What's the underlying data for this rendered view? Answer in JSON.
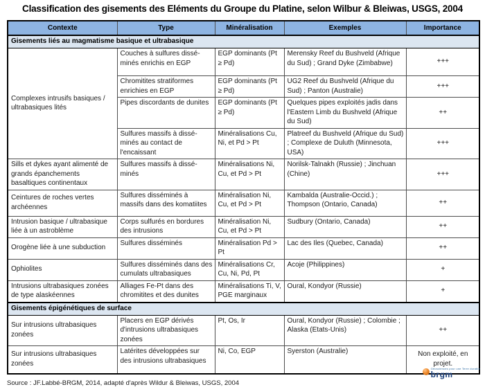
{
  "title": "Classification des gisements des Eléments du Groupe du Platine, selon Wilbur & Bleiwas, USGS, 2004",
  "table": {
    "headers": [
      "Contexte",
      "Type",
      "Minéralisation",
      "Exemples",
      "Importance"
    ],
    "sections": [
      {
        "label": "Gisements liés au magmatisme basique et ultrabasique",
        "rows": [
          {
            "contexte": "Complexes intrusifs basiques / ultrabasiques lités",
            "type": "Couches à sulfures dissé-minés enrichis en EGP",
            "mineralisation": "EGP dominants (Pt ≥ Pd)",
            "exemples": "Merensky Reef du Bushveld (Afrique du Sud) ; Grand Dyke (Zimbabwe)",
            "importance": "+++"
          },
          {
            "type": "Chromitites stratiformes enrichies en EGP",
            "mineralisation": "EGP dominants (Pt ≥ Pd)",
            "exemples": "UG2 Reef du Bushveld (Afrique du Sud) ; Panton (Australie)",
            "importance": "+++"
          },
          {
            "type": "Pipes discordants de dunites",
            "mineralisation": "EGP dominants (Pt ≥ Pd)",
            "exemples": "Quelques pipes exploités jadis dans l'Eastern Limb du Bushveld (Afrique du Sud)",
            "importance": "++"
          },
          {
            "type": "Sulfures massifs à dissé-minés au contact de l'encaissant",
            "mineralisation": "Minéralisations Cu, Ni, et Pd > Pt",
            "exemples": "Platreef du Bushveld (Afrique du Sud) ; Complexe de Duluth (Minnesota, USA)",
            "importance": "+++"
          },
          {
            "contexte": "Sills et dykes ayant alimenté de grands épanchements basaltiques continentaux",
            "type": "Sulfures massifs à dissé-minés",
            "mineralisation": "Minéralisations Ni, Cu, et Pd > Pt",
            "exemples": "Norilsk-Talnakh (Russie) ; Jinchuan (Chine)",
            "importance": "+++"
          },
          {
            "contexte": "Ceintures de roches vertes archéennes",
            "type": "Sulfures disséminés à massifs dans des komatiites",
            "mineralisation": "Minéralisation Ni, Cu, et Pd > Pt",
            "exemples": "Kambalda (Australie-Occid.) ; Thompson (Ontario, Canada)",
            "importance": "++"
          },
          {
            "contexte": "Intrusion basique / ultrabasique liée à un astroblème",
            "type": "Corps sulfurés en bordures des intrusions",
            "mineralisation": "Minéralisation Ni, Cu, et Pd > Pt",
            "exemples": "Sudbury (Ontario, Canada)",
            "importance": "++"
          },
          {
            "contexte": "Orogène liée à une subduction",
            "type": "Sulfures disséminés",
            "mineralisation": "Minéralisation Pd > Pt",
            "exemples": "Lac des Iles (Quebec, Canada)",
            "importance": "++"
          },
          {
            "contexte": "Ophiolites",
            "type": "Sulfures disséminés dans des cumulats ultrabasiques",
            "mineralisation": "Minéralisations Cr, Cu, Ni, Pd, Pt",
            "exemples": "Acoje (Philippines)",
            "importance": "+"
          },
          {
            "contexte": "Intrusions ultrabasiques zonées de type alaskéennes",
            "type": "Alliages Fe-Pt dans des chromitites et des dunites",
            "mineralisation": "Minéralisations Ti, V, PGE marginaux",
            "exemples": "Oural, Kondyor (Russie)",
            "importance": "+"
          }
        ]
      },
      {
        "label": "Gisements épigénétiques de surface",
        "rows": [
          {
            "contexte": "Sur intrusions ultrabasiques zonées",
            "type": "Placers en EGP dérivés d'intrusions ultrabasiques zonées",
            "mineralisation": "Pt, Os, Ir",
            "exemples": "Oural, Kondyor (Russie) ; Colombie ; Alaska (Etats-Unis)",
            "importance": "++"
          },
          {
            "contexte": "Sur intrusions ultrabasiques zonées",
            "type": "Latérites développées sur des intrusions ultrabasiques",
            "mineralisation": "Ni, Co, EGP",
            "exemples": "Syerston (Australie)",
            "importance": "Non exploité, en projet."
          }
        ]
      }
    ]
  },
  "source": "Source : JF.Labbé-BRGM, 2014, adapté d'après Wildur & Bleiwas, USGS, 2004",
  "logo": {
    "text": "brgm",
    "tagline": "Géosciences pour une Terre durable"
  },
  "colors": {
    "header_fill": "#8EB4E2",
    "section_fill": "#DCE6F1",
    "border": "#000000",
    "logo_orange": "#EF8A2C",
    "logo_blue": "#1B3F7A"
  }
}
